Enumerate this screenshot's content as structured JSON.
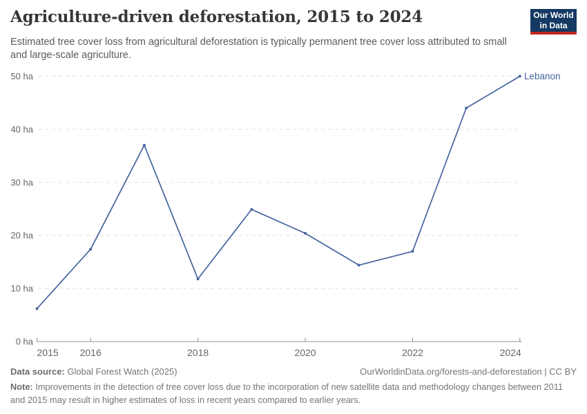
{
  "header": {
    "title": "Agriculture-driven deforestation, 2015 to 2024",
    "subtitle": "Estimated tree cover loss from agricultural deforestation is typically permanent tree cover loss attributed to small and large-scale agriculture.",
    "logo": {
      "line1": "Our World",
      "line2": "in Data",
      "bg_color": "#143a63",
      "accent_color": "#c0281e"
    }
  },
  "chart_data": {
    "type": "line",
    "title": "Agriculture-driven deforestation, 2015 to 2024",
    "x": [
      2015,
      2016,
      2017,
      2018,
      2019,
      2020,
      2021,
      2022,
      2023,
      2024
    ],
    "series": [
      {
        "name": "Lebanon",
        "color": "#44639e",
        "values": [
          6.2,
          17.4,
          37,
          11.8,
          24.9,
          20.4,
          14.4,
          17,
          44,
          50
        ]
      }
    ],
    "xlim": [
      2015,
      2024
    ],
    "ylim": [
      0,
      50
    ],
    "y_ticks": [
      0,
      10,
      20,
      30,
      40,
      50
    ],
    "y_unit": "ha",
    "x_ticks": [
      2015,
      2016,
      2018,
      2020,
      2022,
      2024
    ],
    "grid": "horizontal-dashed",
    "legend_position": "end-of-line-label",
    "colors": {
      "grid": "#e0e0e0",
      "axis": "#8f8f8f",
      "tick_text": "#666666"
    }
  },
  "footer": {
    "data_source_label": "Data source:",
    "data_source_value": " Global Forest Watch (2025)",
    "attribution": "OurWorldinData.org/forests-and-deforestation | CC BY",
    "note_label": "Note:",
    "note_text": " Improvements in the detection of tree cover loss due to the incorporation of new satellite data and methodology changes between 2011 and 2015 may result in higher estimates of loss in recent years compared to earlier years."
  }
}
